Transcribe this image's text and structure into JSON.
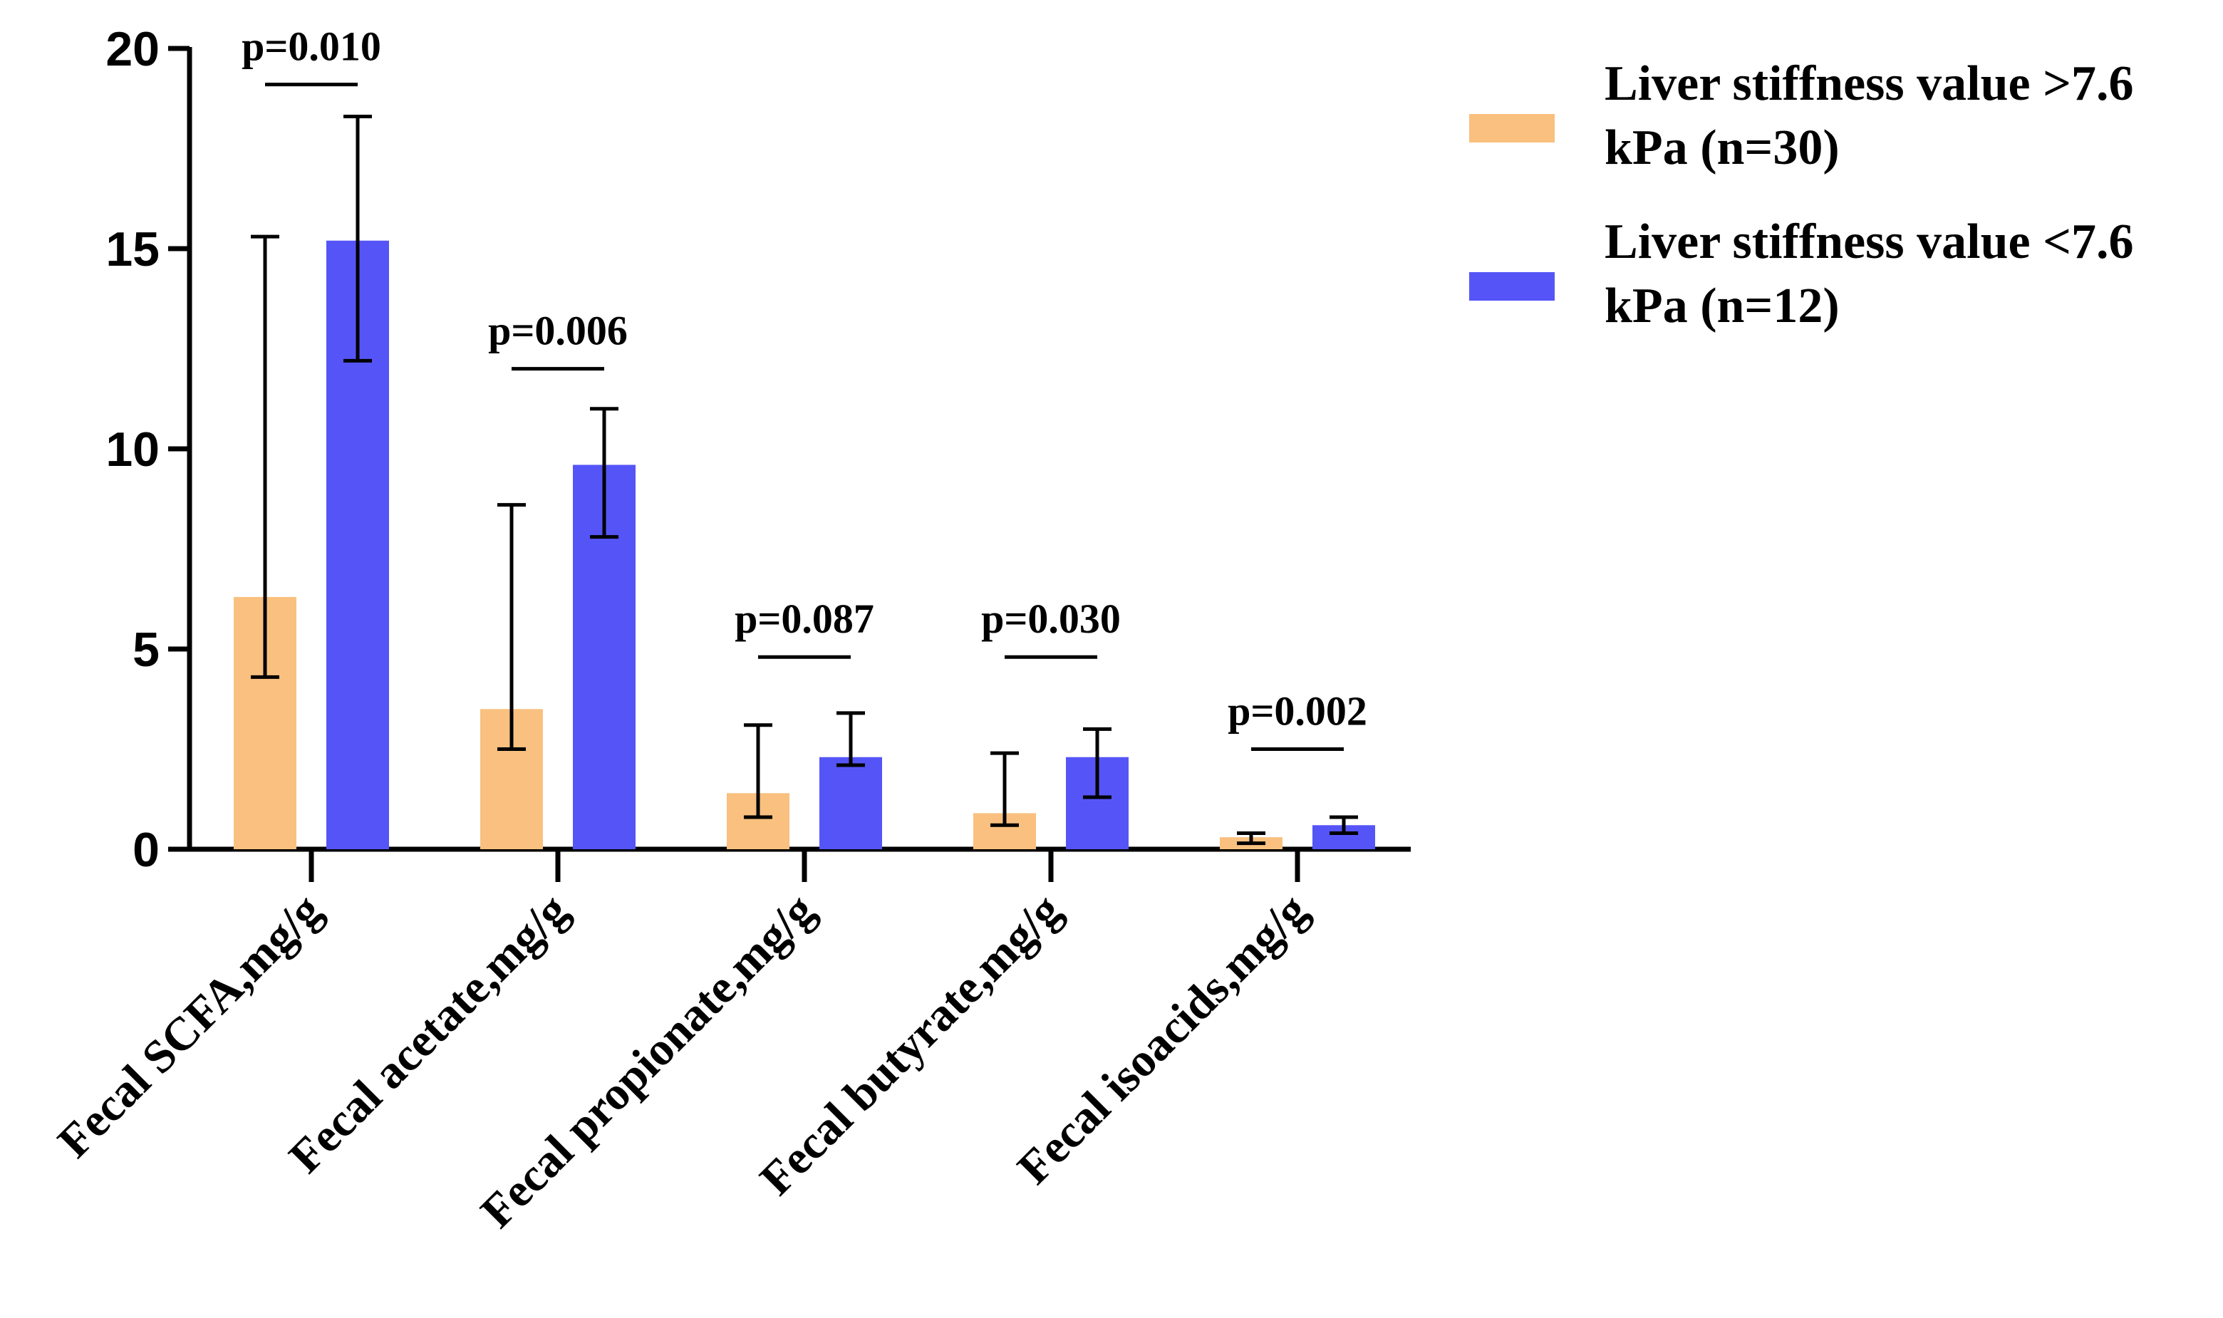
{
  "chart_data": {
    "type": "bar",
    "title": "",
    "xlabel": "",
    "ylabel": "",
    "ylim": [
      0,
      20
    ],
    "yticks": [
      0,
      5,
      10,
      15,
      20
    ],
    "categories": [
      "Fecal SCFA,mg/g",
      "Fecal acetate,mg/g",
      "Fecal propionate,mg/g",
      "Fecal butyrate,mg/g",
      "Fecal isoacids,mg/g"
    ],
    "series": [
      {
        "name": "Liver stiffness value >7.6 kPa (n=30)",
        "legend_lines": [
          "Liver stiffness value >7.6",
          "kPa (n=30)"
        ],
        "color": "#F9C07F",
        "values": [
          6.3,
          3.5,
          1.4,
          0.9,
          0.3
        ],
        "err_low": [
          4.3,
          2.5,
          0.8,
          0.6,
          0.15
        ],
        "err_high": [
          15.3,
          8.6,
          3.1,
          2.4,
          0.4
        ]
      },
      {
        "name": "Liver stiffness value <7.6 kPa (n=12)",
        "legend_lines": [
          "Liver stiffness value <7.6",
          "kPa (n=12)"
        ],
        "color": "#5555F7",
        "values": [
          15.2,
          9.6,
          2.3,
          2.3,
          0.6
        ],
        "err_low": [
          12.2,
          7.8,
          2.1,
          1.3,
          0.4
        ],
        "err_high": [
          18.3,
          11.0,
          3.4,
          3.0,
          0.8
        ]
      }
    ],
    "annotations": [
      {
        "text": "p=0.010",
        "category": 0,
        "y": 19.1
      },
      {
        "text": "p=0.006",
        "category": 1,
        "y": 12.0
      },
      {
        "text": "p=0.087",
        "category": 2,
        "y": 4.8
      },
      {
        "text": "p=0.030",
        "category": 3,
        "y": 4.8
      },
      {
        "text": "p=0.002",
        "category": 4,
        "y": 2.5
      }
    ],
    "legend_position": "top-right",
    "grid": false
  }
}
